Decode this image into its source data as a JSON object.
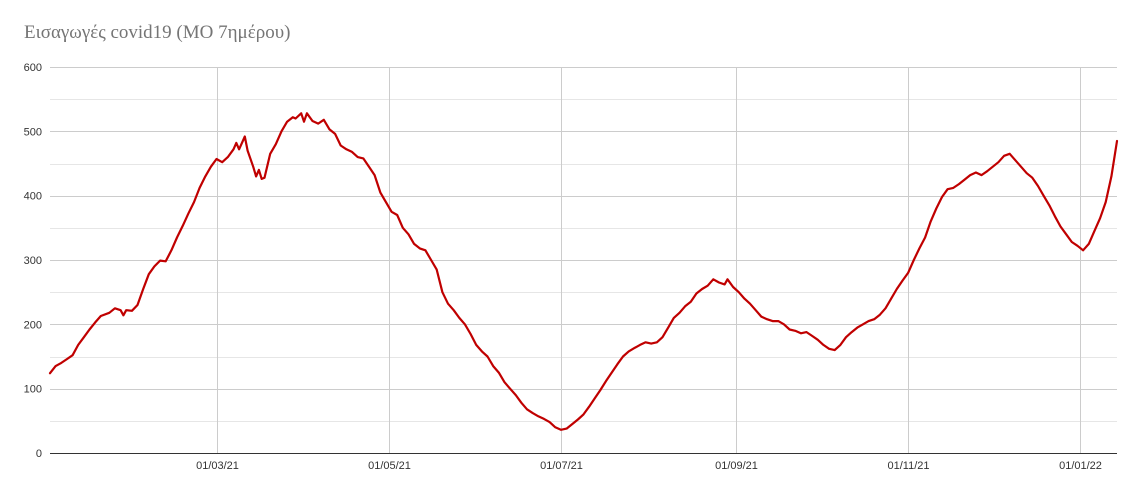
{
  "chart_data": {
    "type": "line",
    "title": "Εισαγωγές covid19 (ΜΟ 7ημέρου)",
    "xlabel": "",
    "ylabel": "",
    "ylim": [
      0,
      600
    ],
    "yticks": [
      0,
      100,
      200,
      300,
      400,
      500,
      600
    ],
    "x_range": [
      "2021-01-01",
      "2022-01-08"
    ],
    "xticks": [
      {
        "date": "2021-03-01",
        "label": "01/03/21"
      },
      {
        "date": "2021-05-01",
        "label": "01/05/21"
      },
      {
        "date": "2021-07-01",
        "label": "01/07/21"
      },
      {
        "date": "2021-09-01",
        "label": "01/09/21"
      },
      {
        "date": "2021-11-01",
        "label": "01/11/21"
      },
      {
        "date": "2022-01-01",
        "label": "01/01/22"
      }
    ],
    "grid": true,
    "line_color": "#c00000",
    "series": [
      {
        "points": [
          [
            "2021-01-01",
            124
          ],
          [
            "2021-01-03",
            135
          ],
          [
            "2021-01-05",
            140
          ],
          [
            "2021-01-07",
            146
          ],
          [
            "2021-01-09",
            152
          ],
          [
            "2021-01-11",
            168
          ],
          [
            "2021-01-13",
            180
          ],
          [
            "2021-01-15",
            192
          ],
          [
            "2021-01-17",
            203
          ],
          [
            "2021-01-19",
            213
          ],
          [
            "2021-01-22",
            218
          ],
          [
            "2021-01-24",
            225
          ],
          [
            "2021-01-26",
            222
          ],
          [
            "2021-01-27",
            214
          ],
          [
            "2021-01-28",
            222
          ],
          [
            "2021-01-30",
            221
          ],
          [
            "2021-02-01",
            230
          ],
          [
            "2021-02-03",
            255
          ],
          [
            "2021-02-05",
            278
          ],
          [
            "2021-02-07",
            290
          ],
          [
            "2021-02-09",
            299
          ],
          [
            "2021-02-11",
            298
          ],
          [
            "2021-02-13",
            315
          ],
          [
            "2021-02-15",
            335
          ],
          [
            "2021-02-17",
            353
          ],
          [
            "2021-02-19",
            372
          ],
          [
            "2021-02-21",
            390
          ],
          [
            "2021-02-23",
            412
          ],
          [
            "2021-02-25",
            430
          ],
          [
            "2021-02-27",
            445
          ],
          [
            "2021-03-01",
            457
          ],
          [
            "2021-03-03",
            452
          ],
          [
            "2021-03-05",
            460
          ],
          [
            "2021-03-07",
            472
          ],
          [
            "2021-03-08",
            482
          ],
          [
            "2021-03-09",
            472
          ],
          [
            "2021-03-11",
            492
          ],
          [
            "2021-03-12",
            470
          ],
          [
            "2021-03-14",
            445
          ],
          [
            "2021-03-15",
            430
          ],
          [
            "2021-03-16",
            440
          ],
          [
            "2021-03-17",
            426
          ],
          [
            "2021-03-18",
            428
          ],
          [
            "2021-03-20",
            465
          ],
          [
            "2021-03-22",
            480
          ],
          [
            "2021-03-24",
            500
          ],
          [
            "2021-03-26",
            515
          ],
          [
            "2021-03-28",
            522
          ],
          [
            "2021-03-29",
            520
          ],
          [
            "2021-03-31",
            528
          ],
          [
            "2021-04-01",
            515
          ],
          [
            "2021-04-02",
            528
          ],
          [
            "2021-04-04",
            516
          ],
          [
            "2021-04-06",
            512
          ],
          [
            "2021-04-08",
            518
          ],
          [
            "2021-04-10",
            503
          ],
          [
            "2021-04-12",
            496
          ],
          [
            "2021-04-14",
            478
          ],
          [
            "2021-04-16",
            472
          ],
          [
            "2021-04-18",
            468
          ],
          [
            "2021-04-20",
            460
          ],
          [
            "2021-04-22",
            458
          ],
          [
            "2021-04-24",
            445
          ],
          [
            "2021-04-26",
            432
          ],
          [
            "2021-04-28",
            405
          ],
          [
            "2021-04-30",
            390
          ],
          [
            "2021-05-02",
            375
          ],
          [
            "2021-05-04",
            370
          ],
          [
            "2021-05-06",
            350
          ],
          [
            "2021-05-08",
            340
          ],
          [
            "2021-05-10",
            325
          ],
          [
            "2021-05-12",
            318
          ],
          [
            "2021-05-14",
            315
          ],
          [
            "2021-05-16",
            300
          ],
          [
            "2021-05-18",
            285
          ],
          [
            "2021-05-20",
            250
          ],
          [
            "2021-05-22",
            232
          ],
          [
            "2021-05-24",
            222
          ],
          [
            "2021-05-26",
            210
          ],
          [
            "2021-05-28",
            200
          ],
          [
            "2021-05-30",
            185
          ],
          [
            "2021-06-01",
            168
          ],
          [
            "2021-06-03",
            158
          ],
          [
            "2021-06-05",
            150
          ],
          [
            "2021-06-07",
            135
          ],
          [
            "2021-06-09",
            125
          ],
          [
            "2021-06-11",
            110
          ],
          [
            "2021-06-13",
            100
          ],
          [
            "2021-06-15",
            90
          ],
          [
            "2021-06-17",
            78
          ],
          [
            "2021-06-19",
            68
          ],
          [
            "2021-06-21",
            62
          ],
          [
            "2021-06-23",
            57
          ],
          [
            "2021-06-25",
            53
          ],
          [
            "2021-06-27",
            48
          ],
          [
            "2021-06-29",
            40
          ],
          [
            "2021-07-01",
            36
          ],
          [
            "2021-07-03",
            38
          ],
          [
            "2021-07-05",
            45
          ],
          [
            "2021-07-07",
            52
          ],
          [
            "2021-07-09",
            60
          ],
          [
            "2021-07-11",
            72
          ],
          [
            "2021-07-13",
            85
          ],
          [
            "2021-07-15",
            98
          ],
          [
            "2021-07-17",
            112
          ],
          [
            "2021-07-19",
            125
          ],
          [
            "2021-07-21",
            138
          ],
          [
            "2021-07-23",
            150
          ],
          [
            "2021-07-25",
            158
          ],
          [
            "2021-07-27",
            163
          ],
          [
            "2021-07-29",
            168
          ],
          [
            "2021-07-31",
            172
          ],
          [
            "2021-08-02",
            170
          ],
          [
            "2021-08-04",
            172
          ],
          [
            "2021-08-06",
            180
          ],
          [
            "2021-08-08",
            195
          ],
          [
            "2021-08-10",
            210
          ],
          [
            "2021-08-12",
            218
          ],
          [
            "2021-08-14",
            228
          ],
          [
            "2021-08-16",
            235
          ],
          [
            "2021-08-18",
            248
          ],
          [
            "2021-08-20",
            255
          ],
          [
            "2021-08-22",
            260
          ],
          [
            "2021-08-24",
            270
          ],
          [
            "2021-08-26",
            265
          ],
          [
            "2021-08-28",
            262
          ],
          [
            "2021-08-29",
            270
          ],
          [
            "2021-08-31",
            258
          ],
          [
            "2021-09-02",
            250
          ],
          [
            "2021-09-04",
            240
          ],
          [
            "2021-09-06",
            232
          ],
          [
            "2021-09-08",
            222
          ],
          [
            "2021-09-10",
            212
          ],
          [
            "2021-09-12",
            208
          ],
          [
            "2021-09-14",
            205
          ],
          [
            "2021-09-16",
            205
          ],
          [
            "2021-09-18",
            200
          ],
          [
            "2021-09-20",
            192
          ],
          [
            "2021-09-22",
            190
          ],
          [
            "2021-09-24",
            186
          ],
          [
            "2021-09-26",
            188
          ],
          [
            "2021-09-28",
            182
          ],
          [
            "2021-09-30",
            176
          ],
          [
            "2021-10-02",
            168
          ],
          [
            "2021-10-04",
            162
          ],
          [
            "2021-10-06",
            160
          ],
          [
            "2021-10-08",
            168
          ],
          [
            "2021-10-10",
            180
          ],
          [
            "2021-10-12",
            188
          ],
          [
            "2021-10-14",
            195
          ],
          [
            "2021-10-16",
            200
          ],
          [
            "2021-10-18",
            205
          ],
          [
            "2021-10-20",
            208
          ],
          [
            "2021-10-22",
            215
          ],
          [
            "2021-10-24",
            225
          ],
          [
            "2021-10-26",
            240
          ],
          [
            "2021-10-28",
            255
          ],
          [
            "2021-10-30",
            268
          ],
          [
            "2021-11-01",
            280
          ],
          [
            "2021-11-03",
            300
          ],
          [
            "2021-11-05",
            318
          ],
          [
            "2021-11-07",
            335
          ],
          [
            "2021-11-09",
            360
          ],
          [
            "2021-11-11",
            380
          ],
          [
            "2021-11-13",
            398
          ],
          [
            "2021-11-15",
            410
          ],
          [
            "2021-11-17",
            412
          ],
          [
            "2021-11-19",
            418
          ],
          [
            "2021-11-21",
            425
          ],
          [
            "2021-11-23",
            432
          ],
          [
            "2021-11-25",
            436
          ],
          [
            "2021-11-27",
            432
          ],
          [
            "2021-11-29",
            438
          ],
          [
            "2021-12-01",
            445
          ],
          [
            "2021-12-03",
            452
          ],
          [
            "2021-12-05",
            462
          ],
          [
            "2021-12-07",
            465
          ],
          [
            "2021-12-09",
            455
          ],
          [
            "2021-12-11",
            445
          ],
          [
            "2021-12-13",
            435
          ],
          [
            "2021-12-15",
            428
          ],
          [
            "2021-12-17",
            415
          ],
          [
            "2021-12-19",
            400
          ],
          [
            "2021-12-21",
            385
          ],
          [
            "2021-12-23",
            368
          ],
          [
            "2021-12-25",
            352
          ],
          [
            "2021-12-27",
            340
          ],
          [
            "2021-12-29",
            328
          ],
          [
            "2021-12-31",
            322
          ],
          [
            "2022-01-02",
            315
          ],
          [
            "2022-01-04",
            325
          ],
          [
            "2022-01-06",
            345
          ],
          [
            "2022-01-08",
            365
          ],
          [
            "2022-01-10",
            390
          ],
          [
            "2022-01-12",
            430
          ],
          [
            "2022-01-14",
            485
          ]
        ]
      }
    ]
  }
}
